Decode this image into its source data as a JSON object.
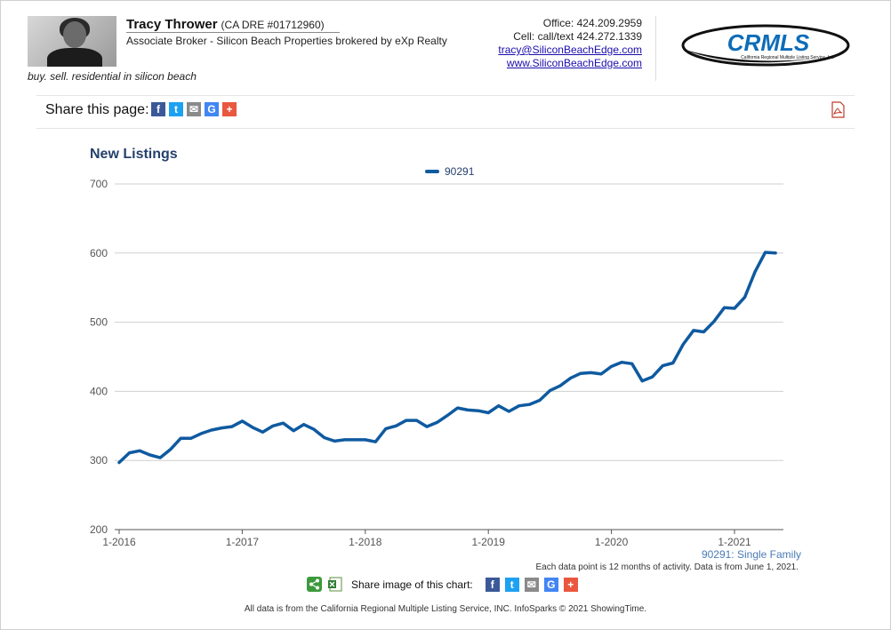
{
  "agent": {
    "name": "Tracy Thrower",
    "dre": "(CA DRE #01712960)",
    "title": "Associate Broker - Silicon Beach Properties brokered by eXp Realty",
    "tagline": "buy. sell. residential in silicon beach"
  },
  "contact": {
    "office": "Office: 424.209.2959",
    "cell": "Cell: call/text 424.272.1339",
    "email": "tracy@SiliconBeachEdge.com",
    "website": "www.SiliconBeachEdge.com"
  },
  "logo": {
    "text": "CRMLS",
    "subtext": "California Regional Multiple Listing Service, Inc."
  },
  "share_page": {
    "label": "Share this page:"
  },
  "chart_data": {
    "type": "line",
    "title": "New Listings",
    "subtitle": "90291: Single Family",
    "note": "Each data point is 12 months of activity. Data is from June 1, 2021.",
    "ylim": [
      200,
      700
    ],
    "yticks": [
      200,
      300,
      400,
      500,
      600,
      700
    ],
    "xticks": [
      "1-2016",
      "1-2017",
      "1-2018",
      "1-2019",
      "1-2020",
      "1-2021"
    ],
    "legend_position": "top-center",
    "grid": true,
    "series": [
      {
        "name": "90291",
        "color": "#0f5aa0",
        "points": [
          [
            "1-2016",
            297
          ],
          [
            "2-2016",
            311
          ],
          [
            "3-2016",
            314
          ],
          [
            "4-2016",
            308
          ],
          [
            "5-2016",
            304
          ],
          [
            "6-2016",
            316
          ],
          [
            "7-2016",
            332
          ],
          [
            "8-2016",
            332
          ],
          [
            "9-2016",
            339
          ],
          [
            "10-2016",
            344
          ],
          [
            "11-2016",
            347
          ],
          [
            "12-2016",
            349
          ],
          [
            "1-2017",
            357
          ],
          [
            "2-2017",
            348
          ],
          [
            "3-2017",
            341
          ],
          [
            "4-2017",
            350
          ],
          [
            "5-2017",
            354
          ],
          [
            "6-2017",
            343
          ],
          [
            "7-2017",
            352
          ],
          [
            "8-2017",
            345
          ],
          [
            "9-2017",
            333
          ],
          [
            "10-2017",
            328
          ],
          [
            "11-2017",
            330
          ],
          [
            "12-2017",
            330
          ],
          [
            "1-2018",
            330
          ],
          [
            "2-2018",
            327
          ],
          [
            "3-2018",
            346
          ],
          [
            "4-2018",
            350
          ],
          [
            "5-2018",
            358
          ],
          [
            "6-2018",
            358
          ],
          [
            "7-2018",
            349
          ],
          [
            "8-2018",
            355
          ],
          [
            "9-2018",
            365
          ],
          [
            "10-2018",
            376
          ],
          [
            "11-2018",
            373
          ],
          [
            "12-2018",
            372
          ],
          [
            "1-2019",
            369
          ],
          [
            "2-2019",
            379
          ],
          [
            "3-2019",
            371
          ],
          [
            "4-2019",
            379
          ],
          [
            "5-2019",
            381
          ],
          [
            "6-2019",
            387
          ],
          [
            "7-2019",
            401
          ],
          [
            "8-2019",
            408
          ],
          [
            "9-2019",
            419
          ],
          [
            "10-2019",
            426
          ],
          [
            "11-2019",
            427
          ],
          [
            "12-2019",
            425
          ],
          [
            "1-2020",
            436
          ],
          [
            "2-2020",
            442
          ],
          [
            "3-2020",
            440
          ],
          [
            "4-2020",
            415
          ],
          [
            "5-2020",
            421
          ],
          [
            "6-2020",
            437
          ],
          [
            "7-2020",
            441
          ],
          [
            "8-2020",
            468
          ],
          [
            "9-2020",
            488
          ],
          [
            "10-2020",
            486
          ],
          [
            "11-2020",
            501
          ],
          [
            "12-2020",
            521
          ],
          [
            "1-2021",
            520
          ],
          [
            "2-2021",
            536
          ],
          [
            "3-2021",
            573
          ],
          [
            "4-2021",
            601
          ],
          [
            "5-2021",
            600
          ]
        ]
      }
    ]
  },
  "share_image": {
    "label": "Share image of this chart:"
  },
  "footer": {
    "text": "All data is from the California Regional Multiple Listing Service, INC. InfoSparks © 2021 ShowingTime."
  }
}
